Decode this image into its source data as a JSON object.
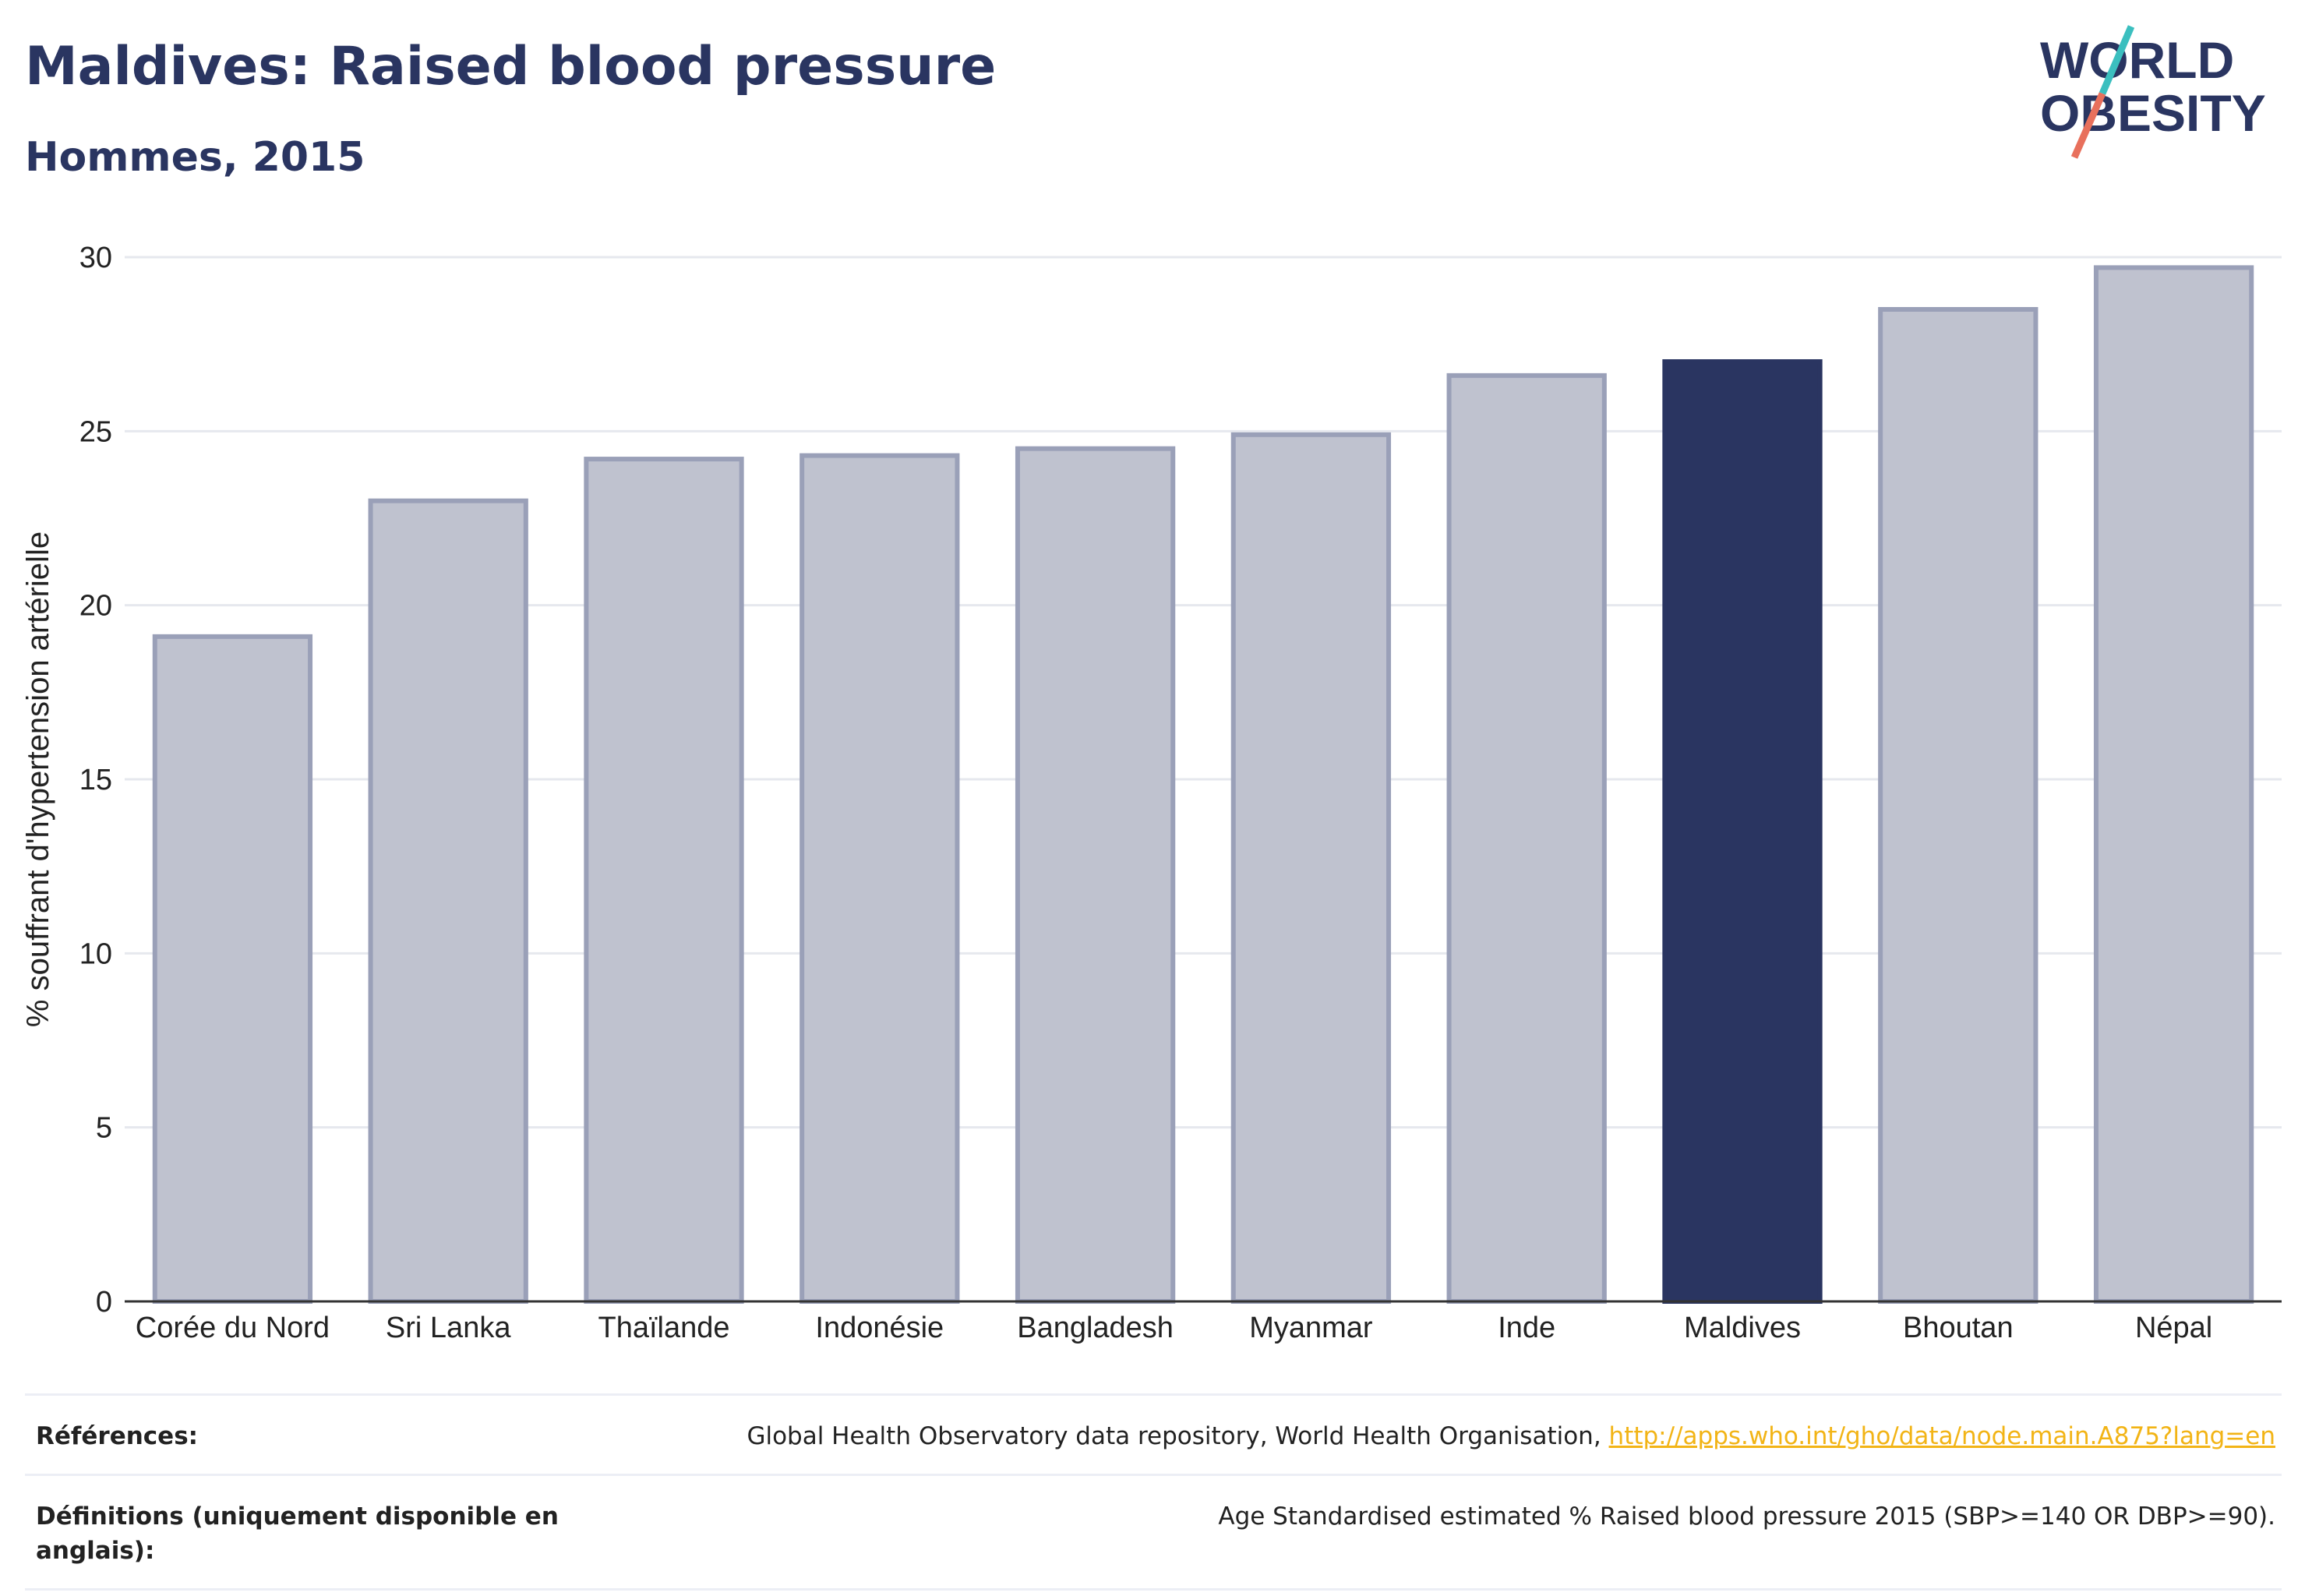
{
  "header": {
    "title": "Maldives: Raised blood pressure",
    "subtitle": "Hommes, 2015"
  },
  "logo": {
    "line1": "WORLD",
    "line2": "OBESITY",
    "slash_colors": [
      "#3bbfbf",
      "#e8705c"
    ]
  },
  "chart_data": {
    "type": "bar",
    "categories": [
      "Corée du Nord",
      "Sri Lanka",
      "Thaïlande",
      "Indonésie",
      "Bangladesh",
      "Myanmar",
      "Inde",
      "Maldives",
      "Bhoutan",
      "Népal"
    ],
    "values": [
      19.1,
      23.0,
      24.2,
      24.3,
      24.5,
      24.9,
      26.6,
      27.0,
      28.5,
      29.7
    ],
    "highlight": "Maldives",
    "ylabel": "% souffrant d'hypertension artérielle",
    "xlabel": "",
    "ylim": [
      0,
      30
    ],
    "yticks": [
      0,
      5,
      10,
      15,
      20,
      25,
      30
    ],
    "grid": true,
    "colors": {
      "bar": "#bfc2cf",
      "bar_border": "#9aa0b8",
      "highlight": "#2a3561",
      "grid": "#e6e8ee",
      "axis": "#333333"
    }
  },
  "references": {
    "sources_label": "Références:",
    "sources_text": "Global Health Observatory data repository, World Health Organisation, ",
    "sources_link": "http://apps.who.int/gho/data/node.main.A875?lang=en",
    "definitions_label": "Définitions (uniquement disponible en anglais):",
    "definitions_text": "Age Standardised estimated % Raised blood pressure 2015 (SBP>=140 OR DBP>=90)."
  }
}
